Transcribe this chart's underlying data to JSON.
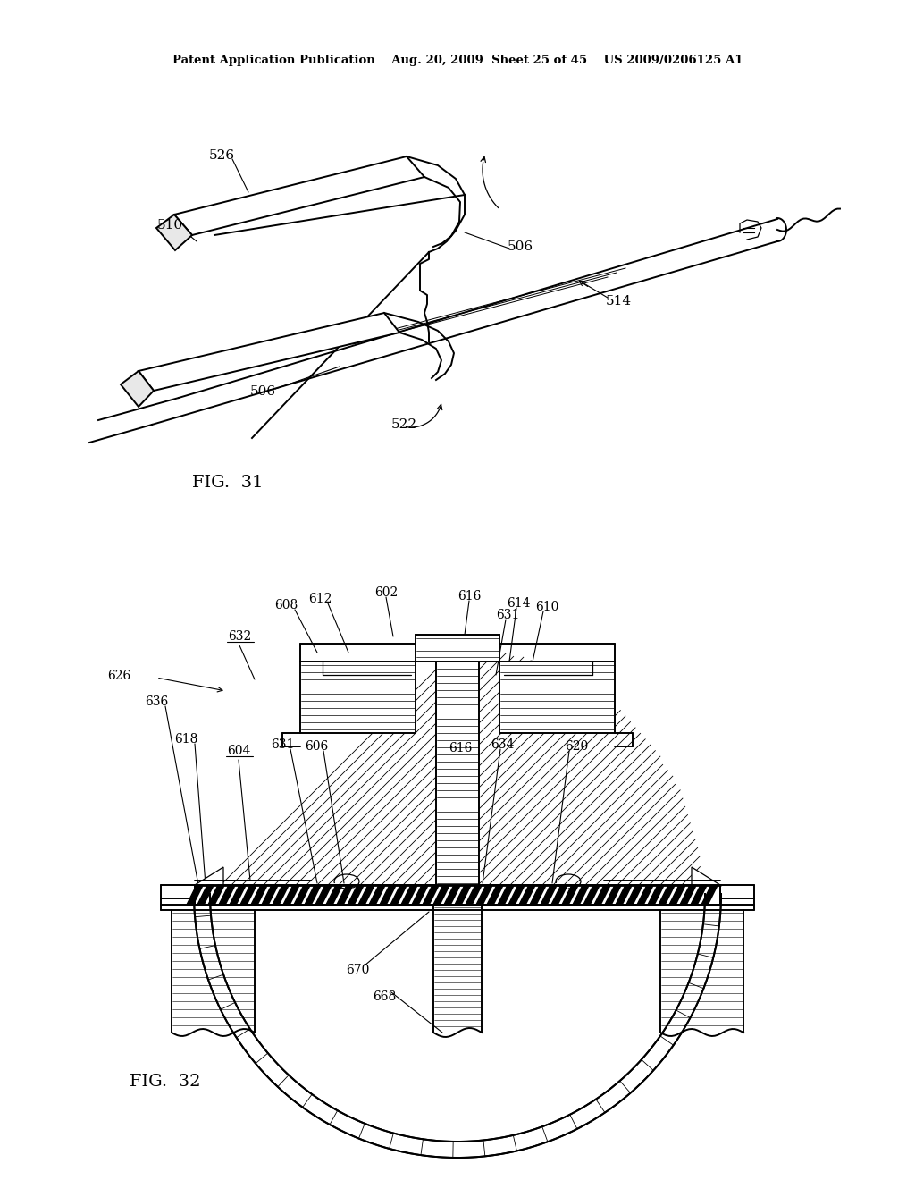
{
  "bg_color": "#ffffff",
  "header_left": "Patent Application Publication",
  "header_mid": "Aug. 20, 2009  Sheet 25 of 45",
  "header_right": "US 2009/0206125 A1",
  "fig31_label": "FIG.  31",
  "fig32_label": "FIG.  32",
  "text_color": "#000000",
  "line_color": "#000000"
}
